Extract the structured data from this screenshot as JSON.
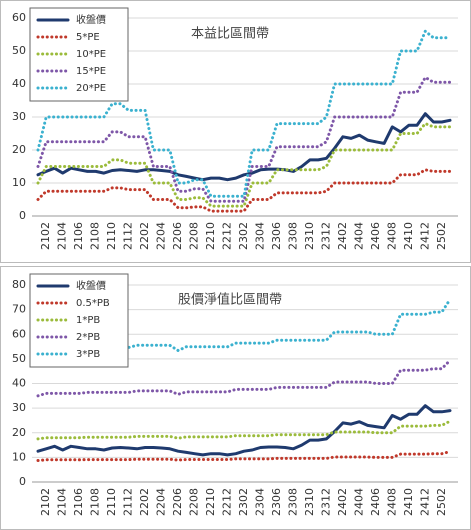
{
  "chart_data": [
    {
      "type": "line",
      "title": "本益比區間帶",
      "categories": [
        null,
        "2102",
        null,
        "2104",
        null,
        "2106",
        null,
        "2108",
        null,
        "2110",
        null,
        "2112",
        null,
        "2202",
        null,
        "2204",
        null,
        "2206",
        null,
        "2208",
        null,
        "2210",
        null,
        "2212",
        null,
        "2302",
        null,
        "2304",
        null,
        "2306",
        null,
        "2308",
        null,
        "2310",
        null,
        "2312",
        null,
        "2402",
        null,
        "2404",
        null,
        "2406",
        null,
        "2408",
        null,
        "2410",
        null,
        "2412",
        null,
        "2502",
        null
      ],
      "series": [
        {
          "name": "收盤價",
          "color": "#1f3a6e",
          "values": [
            12.5,
            13.5,
            14.5,
            13,
            14.5,
            14,
            13.5,
            13.5,
            13,
            13.8,
            14,
            13.8,
            13.5,
            14,
            14,
            13.8,
            13.5,
            12.5,
            12,
            11.5,
            11,
            11.5,
            11.5,
            11,
            11.5,
            12.5,
            13,
            14,
            14.2,
            14.2,
            14,
            13.5,
            15,
            17,
            17,
            17.5,
            20.5,
            24,
            23.5,
            24.5,
            23,
            22.5,
            22,
            27,
            25.5,
            27.5,
            27.5,
            31,
            28.5,
            28.5,
            29
          ]
        },
        {
          "name": "5*PE",
          "color": "#c0392b",
          "values": [
            5,
            7.5,
            7.5,
            7.5,
            7.5,
            7.5,
            7.5,
            7.5,
            7.5,
            8.5,
            8.5,
            8,
            8,
            8,
            5,
            5,
            5,
            2.5,
            2.5,
            2.75,
            2.75,
            1.5,
            1.5,
            1.5,
            1.5,
            1.5,
            5,
            5,
            5,
            7,
            7,
            7,
            7,
            7,
            7,
            7.5,
            10,
            10,
            10,
            10,
            10,
            10,
            10,
            10,
            12.5,
            12.5,
            12.5,
            14,
            13.5,
            13.5,
            13.5
          ]
        },
        {
          "name": "10*PE",
          "color": "#9bbb3b",
          "values": [
            10,
            15,
            15,
            15,
            15,
            15,
            15,
            15,
            15,
            17,
            17,
            16,
            16,
            16,
            10,
            10,
            10,
            5,
            5,
            5.5,
            5.5,
            3,
            3,
            3,
            3,
            3,
            10,
            10,
            10,
            14,
            14,
            14,
            14,
            14,
            14,
            15,
            20,
            20,
            20,
            20,
            20,
            20,
            20,
            20,
            25,
            25,
            25,
            28,
            27,
            27,
            27
          ]
        },
        {
          "name": "15*PE",
          "color": "#7e57a8",
          "values": [
            15,
            22.5,
            22.5,
            22.5,
            22.5,
            22.5,
            22.5,
            22.5,
            22.5,
            25.5,
            25.5,
            24,
            24,
            24,
            15,
            15,
            15,
            7.5,
            7.5,
            8.25,
            8.25,
            4.5,
            4.5,
            4.5,
            4.5,
            4.5,
            15,
            15,
            15,
            21,
            21,
            21,
            21,
            21,
            21,
            22.5,
            30,
            30,
            30,
            30,
            30,
            30,
            30,
            30,
            37.5,
            37.5,
            37.5,
            42,
            40.5,
            40.5,
            40.5
          ]
        },
        {
          "name": "20*PE",
          "color": "#3bb1cf",
          "values": [
            20,
            30,
            30,
            30,
            30,
            30,
            30,
            30,
            30,
            34,
            34,
            32,
            32,
            32,
            20,
            20,
            20,
            10,
            10,
            11,
            11,
            6,
            6,
            6,
            6,
            6,
            20,
            20,
            20,
            28,
            28,
            28,
            28,
            28,
            28,
            30,
            40,
            40,
            40,
            40,
            40,
            40,
            40,
            40,
            50,
            50,
            50,
            56,
            54,
            54,
            54
          ]
        }
      ],
      "ylim": [
        0,
        60
      ],
      "yticks": [
        0,
        10,
        20,
        30,
        40,
        50,
        60
      ]
    },
    {
      "type": "line",
      "title": "股價淨值比區間帶",
      "categories": [
        null,
        "2102",
        null,
        "2104",
        null,
        "2106",
        null,
        "2108",
        null,
        "2110",
        null,
        "2112",
        null,
        "2202",
        null,
        "2204",
        null,
        "2206",
        null,
        "2208",
        null,
        "2210",
        null,
        "2212",
        null,
        "2302",
        null,
        "2304",
        null,
        "2306",
        null,
        "2308",
        null,
        "2310",
        null,
        "2312",
        null,
        "2402",
        null,
        "2404",
        null,
        "2406",
        null,
        "2408",
        null,
        "2410",
        null,
        "2412",
        null,
        "2502",
        null
      ],
      "series": [
        {
          "name": "收盤價",
          "color": "#1f3a6e",
          "values": [
            12.5,
            13.5,
            14.5,
            13,
            14.5,
            14,
            13.5,
            13.5,
            13,
            13.8,
            14,
            13.8,
            13.5,
            14,
            14,
            13.8,
            13.5,
            12.5,
            12,
            11.5,
            11,
            11.5,
            11.5,
            11,
            11.5,
            12.5,
            13,
            14,
            14.2,
            14.2,
            14,
            13.5,
            15,
            17,
            17,
            17.5,
            20.5,
            24,
            23.5,
            24.5,
            23,
            22.5,
            22,
            27,
            25.5,
            27.5,
            27.5,
            31,
            28.5,
            28.5,
            29
          ]
        },
        {
          "name": "0.5*PB",
          "color": "#c0392b",
          "values": [
            8.75,
            9,
            9,
            9,
            9,
            9,
            9.1,
            9.1,
            9.1,
            9.1,
            9.1,
            9.1,
            9.25,
            9.25,
            9.25,
            9.25,
            9.25,
            8.9,
            9.15,
            9.15,
            9.15,
            9.15,
            9.15,
            9.15,
            9.4,
            9.4,
            9.4,
            9.4,
            9.4,
            9.6,
            9.6,
            9.6,
            9.6,
            9.6,
            9.6,
            9.6,
            10.15,
            10.15,
            10.15,
            10.15,
            10.15,
            10,
            10,
            10,
            11.35,
            11.35,
            11.35,
            11.35,
            11.5,
            11.5,
            12.35
          ]
        },
        {
          "name": "1*PB",
          "color": "#9bbb3b",
          "values": [
            17.5,
            18,
            18,
            18,
            18,
            18,
            18.2,
            18.2,
            18.2,
            18.2,
            18.2,
            18.2,
            18.5,
            18.5,
            18.5,
            18.5,
            18.5,
            17.8,
            18.3,
            18.3,
            18.3,
            18.3,
            18.3,
            18.3,
            18.8,
            18.8,
            18.8,
            18.8,
            18.8,
            19.2,
            19.2,
            19.2,
            19.2,
            19.2,
            19.2,
            19.2,
            20.3,
            20.3,
            20.3,
            20.3,
            20.3,
            20,
            20,
            20,
            22.7,
            22.7,
            22.7,
            22.7,
            23,
            23,
            24.7
          ]
        },
        {
          "name": "2*PB",
          "color": "#7e57a8",
          "values": [
            35,
            36,
            36,
            36,
            36,
            36,
            36.4,
            36.4,
            36.4,
            36.4,
            36.4,
            36.4,
            37,
            37,
            37,
            37,
            37,
            35.6,
            36.6,
            36.6,
            36.6,
            36.6,
            36.6,
            36.6,
            37.6,
            37.6,
            37.6,
            37.6,
            37.6,
            38.4,
            38.4,
            38.4,
            38.4,
            38.4,
            38.4,
            38.4,
            40.6,
            40.6,
            40.6,
            40.6,
            40.6,
            40,
            40,
            40,
            45.4,
            45.4,
            45.4,
            45.4,
            46,
            46,
            49.4
          ]
        },
        {
          "name": "3*PB",
          "color": "#3bb1cf",
          "values": [
            52.5,
            54,
            54,
            54,
            54,
            54,
            54.6,
            54.6,
            54.6,
            54.6,
            54.6,
            54.6,
            55.5,
            55.5,
            55.5,
            55.5,
            55.5,
            53.4,
            54.9,
            54.9,
            54.9,
            54.9,
            54.9,
            54.9,
            56.4,
            56.4,
            56.4,
            56.4,
            56.4,
            57.6,
            57.6,
            57.6,
            57.6,
            57.6,
            57.6,
            57.6,
            60.9,
            60.9,
            60.9,
            60.9,
            60.9,
            60,
            60,
            60,
            68.1,
            68.1,
            68.1,
            68.1,
            69,
            69,
            74.1
          ]
        }
      ],
      "ylim": [
        0,
        80
      ],
      "yticks": [
        0,
        10,
        20,
        30,
        40,
        50,
        60,
        70,
        80
      ]
    }
  ]
}
